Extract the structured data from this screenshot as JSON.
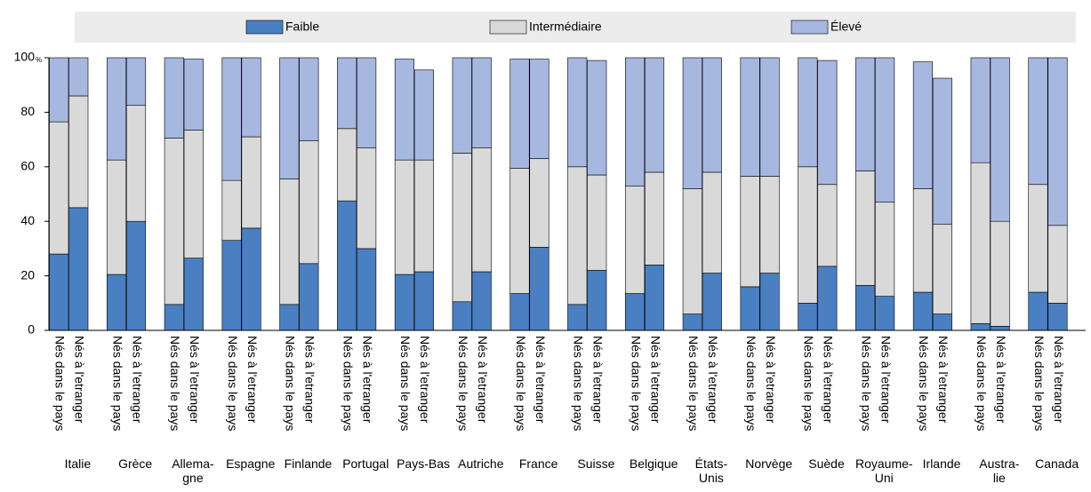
{
  "chart_data": {
    "type": "stacked_bar",
    "ylabel": "%",
    "groups": [
      "Italie",
      "Grèce",
      "Allema-\ngne",
      "Espagne",
      "Finlande",
      "Portugal",
      "Pays-Bas",
      "Autriche",
      "France",
      "Suisse",
      "Belgique",
      "États-\nUnis",
      "Norvège",
      "Suède",
      "Royaume-\nUni",
      "Irlande",
      "Austra-\nlie",
      "Canada"
    ],
    "categories": [
      "Nés dans le pays",
      "Nés à l'etranger",
      "Nés dans le pays",
      "Nés à l'etranger",
      "Nés dans le pays",
      "Nés à l'etranger",
      "Nés dans le pays",
      "Nés à l'etranger",
      "Nés dans le pays",
      "Nés à l'etranger",
      "Nés dans le pays",
      "Nés à l'etranger",
      "Nés dans le pays",
      "Nés à l'etranger",
      "Nés dans le pays",
      "Nés à l'etranger",
      "Nés dans le pays",
      "Nés à l'etranger",
      "Nés dans le pays",
      "Nés à l'etranger",
      "Nés dans le pays",
      "Nés à l'etranger",
      "Nés dans le pays",
      "Nés à l'etranger",
      "Nés dans le pays",
      "Nés à l'etranger",
      "Nés dans le pays",
      "Nés à l'etranger",
      "Nés dans le pays",
      "Nés à l'etranger",
      "Nés dans le pays",
      "Nés à l'etranger",
      "Nés dans le pays",
      "Nés à l'etranger",
      "Nés dans le pays",
      "Nés à l'etranger"
    ],
    "series": [
      {
        "name": "Faible",
        "color": "#4a7fc1",
        "values": [
          28,
          45,
          20.5,
          40,
          9.5,
          26.5,
          33,
          37.5,
          9.5,
          24.5,
          47.5,
          30,
          20.5,
          21.5,
          10.5,
          21.5,
          13.5,
          30.5,
          9.5,
          22,
          13.5,
          24,
          6,
          21,
          16,
          21,
          10,
          23.5,
          16.5,
          12.5,
          14,
          6,
          2.5,
          1.5,
          14,
          10
        ]
      },
      {
        "name": "Intermédiaire",
        "color": "#d9d9d9",
        "values": [
          48.5,
          41,
          42,
          42.5,
          61,
          47,
          22,
          33.5,
          46,
          45,
          26.5,
          37,
          42,
          41,
          54.5,
          45.5,
          46,
          32.5,
          50.5,
          35,
          39.5,
          34,
          46,
          37,
          40.5,
          35.5,
          50,
          30,
          42,
          34.5,
          38,
          33,
          59,
          38.5,
          39.5,
          28.5
        ]
      },
      {
        "name": "Élevé",
        "color": "#a6b7e0",
        "values": [
          23.5,
          14,
          37.5,
          17.5,
          29.5,
          26,
          45,
          29,
          44.5,
          30.5,
          26,
          33,
          37,
          33,
          35,
          33,
          40,
          36.5,
          40,
          42,
          47,
          42,
          48,
          42,
          43.5,
          43.5,
          40,
          45.5,
          41.5,
          53,
          46.5,
          53.5,
          38.5,
          60,
          46.5,
          61.5
        ]
      }
    ],
    "ylim": [
      0,
      100
    ],
    "yticks": [
      0,
      20,
      40,
      60,
      80,
      100
    ],
    "grid": false
  }
}
